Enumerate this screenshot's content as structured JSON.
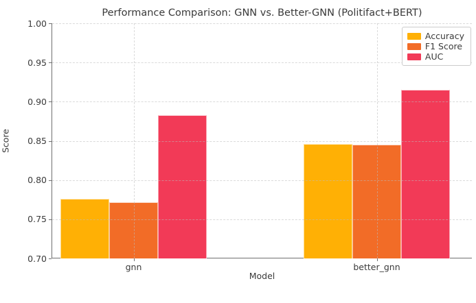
{
  "chart_data": {
    "type": "bar",
    "title": "Performance Comparison: GNN vs. Better-GNN (Politifact+BERT)",
    "xlabel": "Model",
    "ylabel": "Score",
    "categories": [
      "gnn",
      "better_gnn"
    ],
    "series": [
      {
        "name": "Accuracy",
        "color": "#FFB005",
        "values": [
          0.776,
          0.846
        ]
      },
      {
        "name": "F1 Score",
        "color": "#F26C27",
        "values": [
          0.772,
          0.845
        ]
      },
      {
        "name": "AUC",
        "color": "#F23A57",
        "values": [
          0.883,
          0.915
        ]
      }
    ],
    "ylim": [
      0.7,
      1.0
    ],
    "ytick_labels": [
      "1.00",
      "0.95",
      "0.90",
      "0.85",
      "0.80",
      "0.75",
      "0.70"
    ],
    "grid": "dashed-both-axes",
    "legend_position": "upper-right",
    "colors": {
      "text": "#3A3A3A",
      "gridline": "#DCDCDC",
      "spine": "#6E6E6E",
      "background": "#FFFFFF"
    }
  }
}
